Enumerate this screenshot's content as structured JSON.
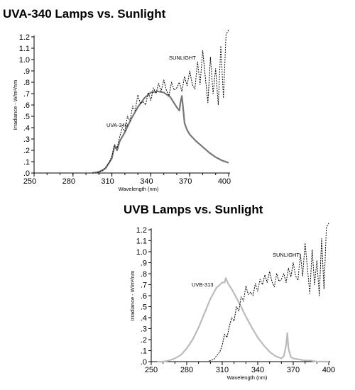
{
  "chart_data": [
    {
      "type": "line",
      "title": "UVA-340 Lamps vs. Sunlight",
      "xlabel": "Wavelength (nm)",
      "ylabel": "Irradiance - W/m²/nm",
      "xlim": [
        250,
        400
      ],
      "ylim": [
        0,
        1.2
      ],
      "x_ticks": [
        "250",
        "280",
        "310",
        "340",
        "370",
        "400"
      ],
      "y_ticks": [
        ".0",
        ".1",
        ".2",
        ".3",
        ".4",
        ".5",
        ".6",
        ".7",
        ".8",
        ".9",
        "1.0",
        "1.1",
        "1.2"
      ],
      "series": [
        {
          "name": "UVA-340",
          "style": "solid",
          "color": "#777777",
          "x": [
            295,
            300,
            305,
            310,
            312,
            314,
            316,
            320,
            325,
            330,
            335,
            340,
            345,
            350,
            355,
            360,
            362,
            363,
            364,
            365,
            366,
            368,
            370,
            375,
            380,
            385,
            390,
            395,
            400
          ],
          "y": [
            0.0,
            0.01,
            0.04,
            0.13,
            0.24,
            0.2,
            0.28,
            0.36,
            0.48,
            0.58,
            0.66,
            0.71,
            0.72,
            0.71,
            0.67,
            0.58,
            0.55,
            0.63,
            0.68,
            0.56,
            0.44,
            0.38,
            0.34,
            0.28,
            0.23,
            0.18,
            0.14,
            0.11,
            0.09
          ]
        },
        {
          "name": "SUNLIGHT",
          "style": "dotted",
          "color": "#000000",
          "x": [
            295,
            298,
            300,
            303,
            305,
            308,
            310,
            312,
            314,
            316,
            318,
            320,
            322,
            324,
            326,
            328,
            330,
            332,
            334,
            336,
            338,
            340,
            342,
            344,
            346,
            348,
            350,
            352,
            354,
            356,
            358,
            360,
            362,
            364,
            366,
            368,
            370,
            372,
            374,
            376,
            378,
            380,
            382,
            384,
            386,
            388,
            390,
            392,
            394,
            396,
            398,
            400
          ],
          "y": [
            0.0,
            0.0,
            0.01,
            0.02,
            0.05,
            0.09,
            0.15,
            0.25,
            0.22,
            0.32,
            0.4,
            0.37,
            0.5,
            0.46,
            0.59,
            0.55,
            0.69,
            0.61,
            0.63,
            0.6,
            0.71,
            0.64,
            0.75,
            0.7,
            0.79,
            0.72,
            0.82,
            0.73,
            0.68,
            0.8,
            0.73,
            0.75,
            0.8,
            0.72,
            0.85,
            0.77,
            0.9,
            0.78,
            0.74,
            0.98,
            0.78,
            1.08,
            0.85,
            0.62,
            1.02,
            0.7,
            0.92,
            0.6,
            1.12,
            0.66,
            1.22,
            1.26
          ]
        }
      ]
    },
    {
      "type": "line",
      "title": "UVB Lamps vs. Sunlight",
      "xlabel": "Wavelength (nm)",
      "ylabel": "Irradiance - W/m²/nm",
      "xlim": [
        250,
        400
      ],
      "ylim": [
        0,
        1.2
      ],
      "x_ticks": [
        "250",
        "280",
        "310",
        "340",
        "370",
        "400"
      ],
      "y_ticks": [
        ".0",
        ".1",
        ".2",
        ".3",
        ".4",
        ".5",
        ".6",
        ".7",
        ".8",
        ".9",
        "1.0",
        "1.1",
        "1.2"
      ],
      "series": [
        {
          "name": "UVB-313",
          "style": "solid",
          "color": "#bbbbbb",
          "x": [
            255,
            260,
            265,
            270,
            275,
            280,
            285,
            290,
            295,
            300,
            305,
            308,
            310,
            312,
            313,
            315,
            318,
            320,
            325,
            330,
            335,
            340,
            345,
            350,
            355,
            360,
            362,
            364,
            365,
            366,
            368,
            370,
            375,
            380,
            385,
            390,
            395,
            400
          ],
          "y": [
            0.0,
            0.0,
            0.01,
            0.03,
            0.06,
            0.12,
            0.2,
            0.31,
            0.44,
            0.57,
            0.67,
            0.7,
            0.72,
            0.72,
            0.76,
            0.71,
            0.66,
            0.62,
            0.52,
            0.41,
            0.31,
            0.22,
            0.15,
            0.09,
            0.05,
            0.03,
            0.05,
            0.15,
            0.26,
            0.12,
            0.04,
            0.03,
            0.02,
            0.01,
            0.01,
            0.0,
            0.0,
            0.0
          ]
        },
        {
          "name": "SUNLIGHT",
          "style": "dotted",
          "color": "#000000",
          "x": [
            295,
            298,
            300,
            303,
            305,
            308,
            310,
            312,
            314,
            316,
            318,
            320,
            322,
            324,
            326,
            328,
            330,
            332,
            334,
            336,
            338,
            340,
            342,
            344,
            346,
            348,
            350,
            352,
            354,
            356,
            358,
            360,
            362,
            364,
            366,
            368,
            370,
            372,
            374,
            376,
            378,
            380,
            382,
            384,
            386,
            388,
            390,
            392,
            394,
            396,
            398,
            400
          ],
          "y": [
            0.0,
            0.0,
            0.01,
            0.02,
            0.05,
            0.09,
            0.15,
            0.25,
            0.22,
            0.32,
            0.4,
            0.37,
            0.5,
            0.46,
            0.59,
            0.55,
            0.69,
            0.61,
            0.63,
            0.6,
            0.71,
            0.64,
            0.75,
            0.7,
            0.79,
            0.72,
            0.82,
            0.73,
            0.68,
            0.8,
            0.73,
            0.75,
            0.8,
            0.72,
            0.85,
            0.77,
            0.9,
            0.78,
            0.74,
            0.98,
            0.78,
            1.08,
            0.85,
            0.62,
            1.02,
            0.7,
            0.92,
            0.6,
            1.12,
            0.66,
            1.22,
            1.26
          ]
        }
      ]
    }
  ]
}
